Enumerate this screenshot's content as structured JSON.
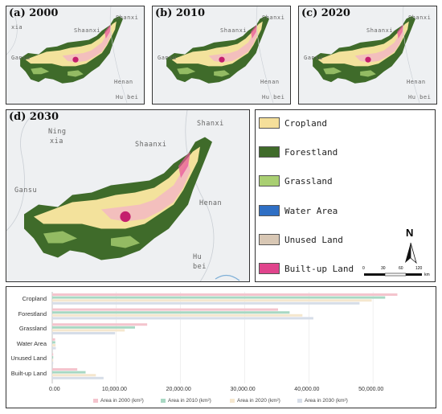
{
  "panels": {
    "a": {
      "label": "(a) 2000"
    },
    "b": {
      "label": "(b) 2010"
    },
    "c": {
      "label": "(c) 2020"
    },
    "d": {
      "label": "(d) 2030"
    }
  },
  "small_map_labels": {
    "shanxi": "Shanxi",
    "ningxia": "Ning",
    "xia": "xia",
    "shaanxi": "Shaanxi",
    "gansu": "Gansu",
    "henan": "Henan",
    "hubei": "Hu bei"
  },
  "big_map_labels": {
    "ning": "Ning",
    "xia": "xia",
    "shanxi": "Shanxi",
    "shaanxi": "Shaanxi",
    "gansu": "Gansu",
    "henan": "Henan",
    "hu": "Hu",
    "bei": "bei"
  },
  "legend": {
    "items": [
      {
        "label": "Cropland",
        "color": "#f5df9a"
      },
      {
        "label": "Forestland",
        "color": "#3f6b2a"
      },
      {
        "label": "Grassland",
        "color": "#a9cf72"
      },
      {
        "label": "Water Area",
        "color": "#2f6fc4"
      },
      {
        "label": "Unused Land",
        "color": "#d8c7b4"
      },
      {
        "label": "Built-up Land",
        "color": "#e0448c"
      }
    ],
    "north": "N",
    "scale": {
      "ticks": [
        "0",
        "30",
        "60",
        "120"
      ],
      "unit": "km"
    }
  },
  "chart_data": {
    "type": "bar",
    "orientation": "horizontal",
    "categories": [
      "Cropland",
      "Forestland",
      "Grassland",
      "Water Area",
      "Unused Land",
      "Built-up Land"
    ],
    "series": [
      {
        "name": "Area in 2000 (km²)",
        "color": "#f4c4cd",
        "values": [
          53800,
          35200,
          14800,
          450,
          150,
          3900
        ]
      },
      {
        "name": "Area in 2010 (km²)",
        "color": "#a8d8c3",
        "values": [
          51900,
          37000,
          12900,
          480,
          150,
          5200
        ]
      },
      {
        "name": "Area in 2020 (km²)",
        "color": "#f5e7ce",
        "values": [
          49800,
          39000,
          11300,
          520,
          150,
          6800
        ]
      },
      {
        "name": "Area in 2030 (km²)",
        "color": "#d6dde8",
        "values": [
          47900,
          40700,
          9800,
          560,
          150,
          8000
        ]
      }
    ],
    "xlim": [
      0,
      58000
    ],
    "xticks": [
      "0.00",
      "10,000.00",
      "20,000.00",
      "30,000.00",
      "40,000.00",
      "50,000.00"
    ],
    "xtick_values": [
      0,
      10000,
      20000,
      30000,
      40000,
      50000
    ]
  }
}
